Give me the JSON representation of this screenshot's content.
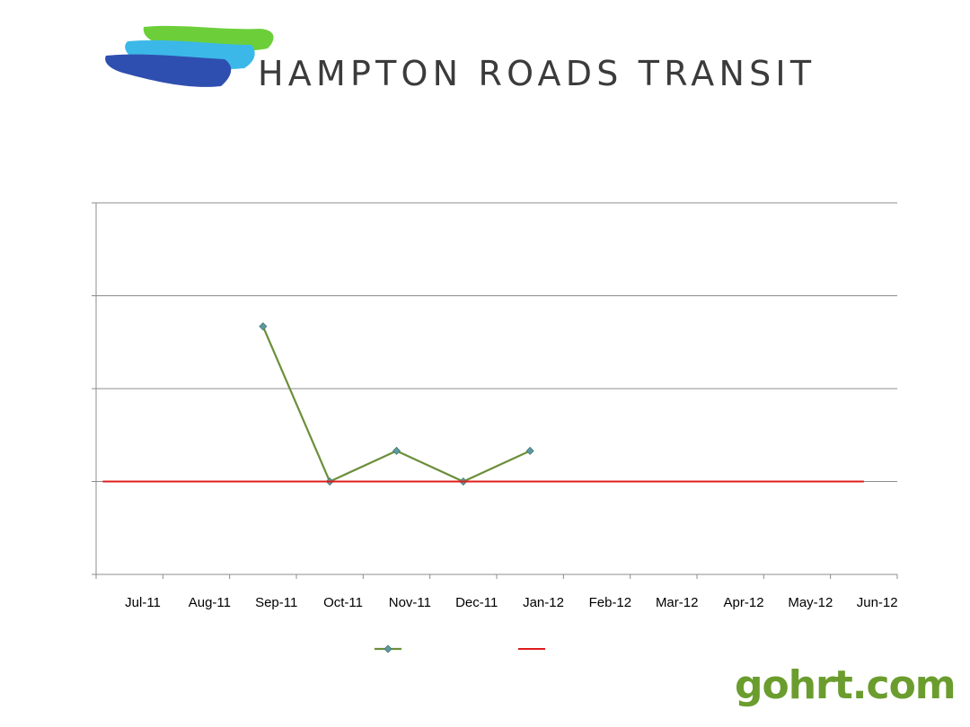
{
  "brand": {
    "name": "HAMPTON ROADS TRANSIT",
    "website": "gohrt.com",
    "colors": {
      "green": "#6ccf3a",
      "light_blue": "#3cb8e8",
      "dark_blue": "#2f4fb0",
      "website_green": "#6a9d2e"
    }
  },
  "chart_data": {
    "type": "line",
    "title": "",
    "xlabel": "",
    "ylabel": "",
    "categories": [
      "Jul-11",
      "Aug-11",
      "Sep-11",
      "Oct-11",
      "Nov-11",
      "Dec-11",
      "Jan-12",
      "Feb-12",
      "Mar-12",
      "Apr-12",
      "May-12",
      "Jun-12"
    ],
    "ylim": [
      0,
      4
    ],
    "grid": true,
    "legend": "bottom-center",
    "series": [
      {
        "color": "#6b8f3a",
        "marker": "diamond",
        "values": [
          null,
          null,
          2.67,
          1.0,
          1.33,
          1.0,
          1.33,
          null,
          null,
          null,
          null,
          null
        ]
      },
      {
        "color": "#e01b1b",
        "marker": "none",
        "values": [
          1,
          1,
          1,
          1,
          1,
          1,
          1,
          1,
          1,
          1,
          1,
          1
        ]
      }
    ]
  }
}
